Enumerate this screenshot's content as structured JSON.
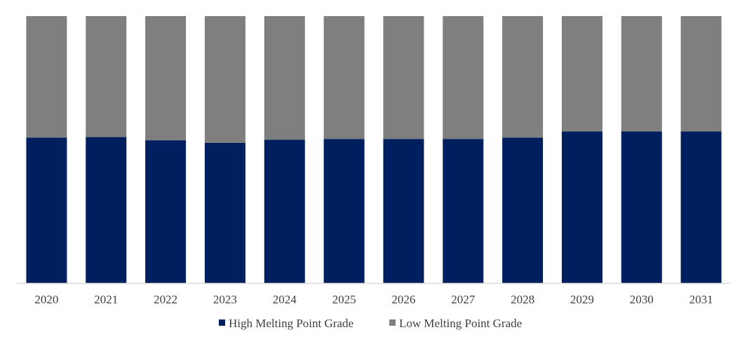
{
  "chart_data": {
    "type": "bar",
    "stacked": true,
    "normalized": true,
    "categories": [
      "2020",
      "2021",
      "2022",
      "2023",
      "2024",
      "2025",
      "2026",
      "2027",
      "2028",
      "2029",
      "2030",
      "2031"
    ],
    "series": [
      {
        "name": "High Melting Point Grade",
        "color": "#001f5f",
        "values": [
          54.5,
          54.7,
          53.5,
          52.5,
          53.7,
          54.0,
          54.0,
          54.0,
          54.5,
          56.8,
          56.8,
          56.8
        ]
      },
      {
        "name": "Low Melting Point Grade",
        "color": "#7f7f7f",
        "values": [
          45.5,
          45.3,
          46.5,
          47.5,
          46.3,
          46.0,
          46.0,
          46.0,
          45.5,
          43.2,
          43.2,
          43.2
        ]
      }
    ],
    "ylim": [
      0,
      100
    ],
    "grid": false,
    "legend_position": "bottom-center",
    "axis_color": "#d9d9d9"
  }
}
